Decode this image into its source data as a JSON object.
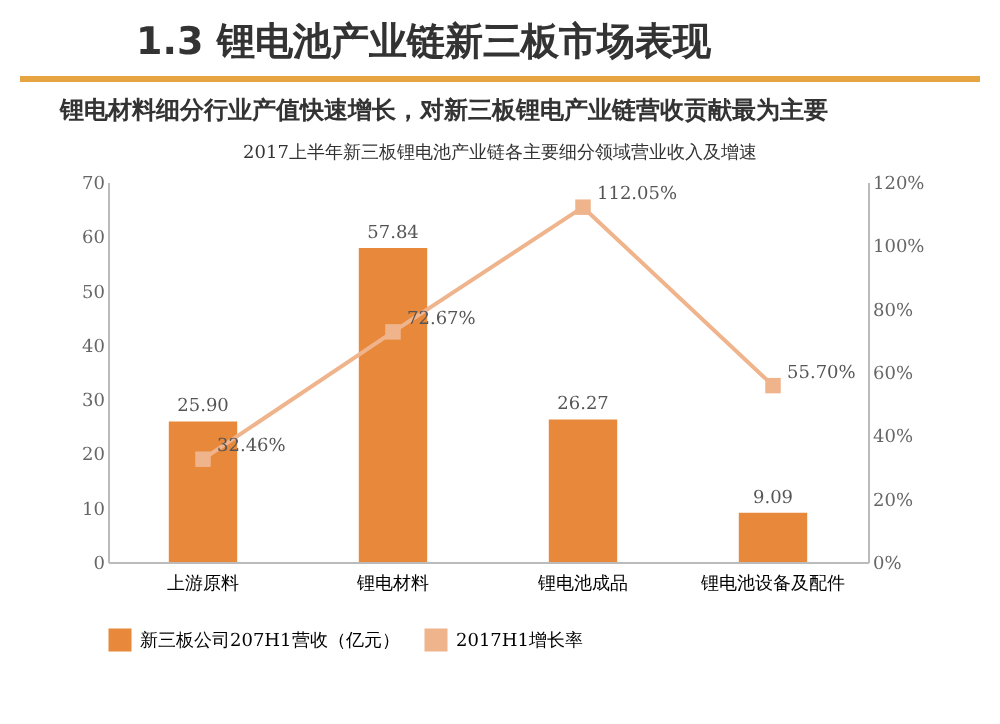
{
  "chart_data": {
    "type": "bar",
    "title": "1.3 锂电池产业链新三板市场表现",
    "subtitle": "锂电材料细分行业产值快速增长，对新三板锂电产业链营收贡献最为主要",
    "annotations": [
      "2017上半年新三板锂电池产业链各主要细分领域营业收入及增速"
    ],
    "categories": [
      "上游原料",
      "锂电材料",
      "锂电池成品",
      "锂电池设备及配件"
    ],
    "series": [
      {
        "name": "新三板公司207H1营收（亿元）",
        "color": "#e8883a",
        "values": [
          25.9,
          57.84,
          26.27,
          9.09
        ],
        "value_labels": [
          "25.90",
          "57.84",
          "26.27",
          "9.09"
        ]
      },
      {
        "name": "2017H1增长率",
        "type": "line",
        "axis": "y2",
        "color": "#f0b48c",
        "marker": "square",
        "values": [
          32.46,
          72.67,
          112.05,
          55.7
        ],
        "value_labels": [
          "32.46%",
          "72.67%",
          "112.05%",
          "55.70%"
        ]
      }
    ],
    "ylim": [
      0,
      70
    ],
    "yticks": [
      0,
      10,
      20,
      30,
      40,
      50,
      60,
      70
    ],
    "y2lim": [
      0,
      120
    ],
    "y2ticks": [
      {
        "value": 0,
        "label": "0%"
      },
      {
        "value": 20,
        "label": "20%"
      },
      {
        "value": 40,
        "label": "40%"
      },
      {
        "value": 60,
        "label": "60%"
      },
      {
        "value": 80,
        "label": "80%"
      },
      {
        "value": 100,
        "label": "100%"
      },
      {
        "value": 120,
        "label": "120%"
      }
    ],
    "legend": "bottom",
    "grid": false
  }
}
